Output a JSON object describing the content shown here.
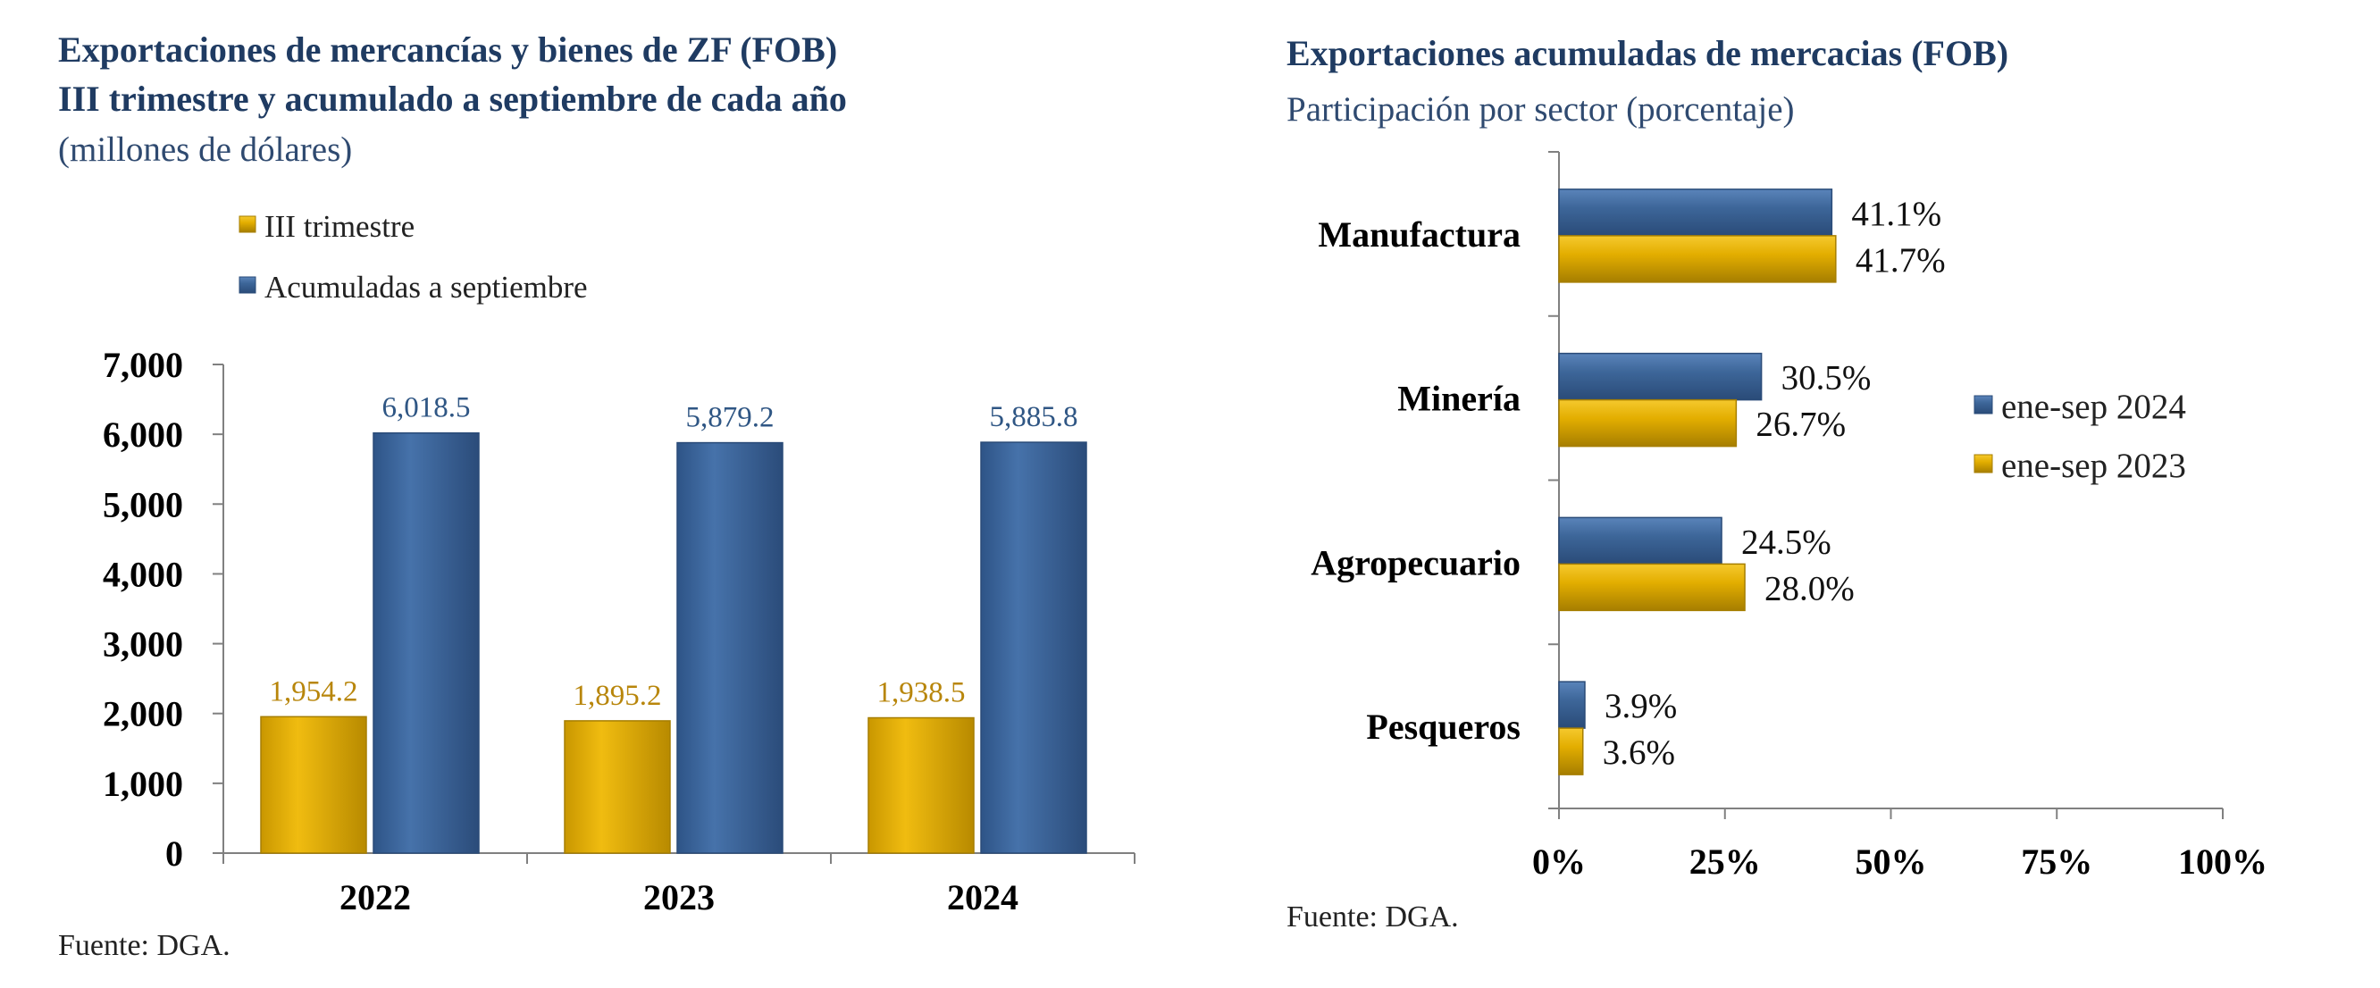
{
  "left": {
    "title_line1": "Exportaciones de mercancías y bienes de ZF (FOB)",
    "title_line2": "III trimestre y acumulado a septiembre de cada año",
    "subtitle": "(millones de dólares)",
    "source": "Fuente: DGA."
  },
  "right": {
    "title": "Exportaciones acumuladas de mercacias (FOB)",
    "subtitle": "Participación por sector (porcentaje)",
    "source": "Fuente: DGA."
  },
  "colors": {
    "blue": "#3D6699",
    "blue_dark": "#2A4B78",
    "gold": "#E3AE00",
    "gold_dark": "#A67E00",
    "blue_label": "#2F5684",
    "gold_label": "#B8860B"
  },
  "chart_data": [
    {
      "type": "bar",
      "orientation": "vertical",
      "categories": [
        "2022",
        "2023",
        "2024"
      ],
      "series": [
        {
          "name": "III trimestre",
          "values": [
            1954.2,
            1895.2,
            1938.5
          ],
          "labels": [
            "1,954.2",
            "1,895.2",
            "1,938.5"
          ],
          "color": "#E3AE00"
        },
        {
          "name": "Acumuladas a septiembre",
          "values": [
            6018.5,
            5879.2,
            5885.8
          ],
          "labels": [
            "6,018.5",
            "5,879.2",
            "5,885.8"
          ],
          "color": "#3D6699"
        }
      ],
      "ylim": [
        0,
        7000
      ],
      "yticks": [
        0,
        1000,
        2000,
        3000,
        4000,
        5000,
        6000,
        7000
      ],
      "ytick_labels": [
        "0",
        "1,000",
        "2,000",
        "3,000",
        "4,000",
        "5,000",
        "6,000",
        "7,000"
      ],
      "legend_position": "top"
    },
    {
      "type": "bar",
      "orientation": "horizontal",
      "categories": [
        "Manufactura",
        "Minería",
        "Agropecuario",
        "Pesqueros"
      ],
      "series": [
        {
          "name": "ene-sep 2024",
          "values": [
            41.1,
            30.5,
            24.5,
            3.9
          ],
          "labels": [
            "41.1%",
            "30.5%",
            "24.5%",
            "3.9%"
          ],
          "color": "#3D6699"
        },
        {
          "name": "ene-sep 2023",
          "values": [
            41.7,
            26.7,
            28.0,
            3.6
          ],
          "labels": [
            "41.7%",
            "26.7%",
            "28.0%",
            "3.6%"
          ],
          "color": "#E3AE00"
        }
      ],
      "xlim": [
        0,
        100
      ],
      "xticks": [
        0,
        25,
        50,
        75,
        100
      ],
      "xtick_labels": [
        "0%",
        "25%",
        "50%",
        "75%",
        "100%"
      ],
      "legend_position": "right"
    }
  ]
}
